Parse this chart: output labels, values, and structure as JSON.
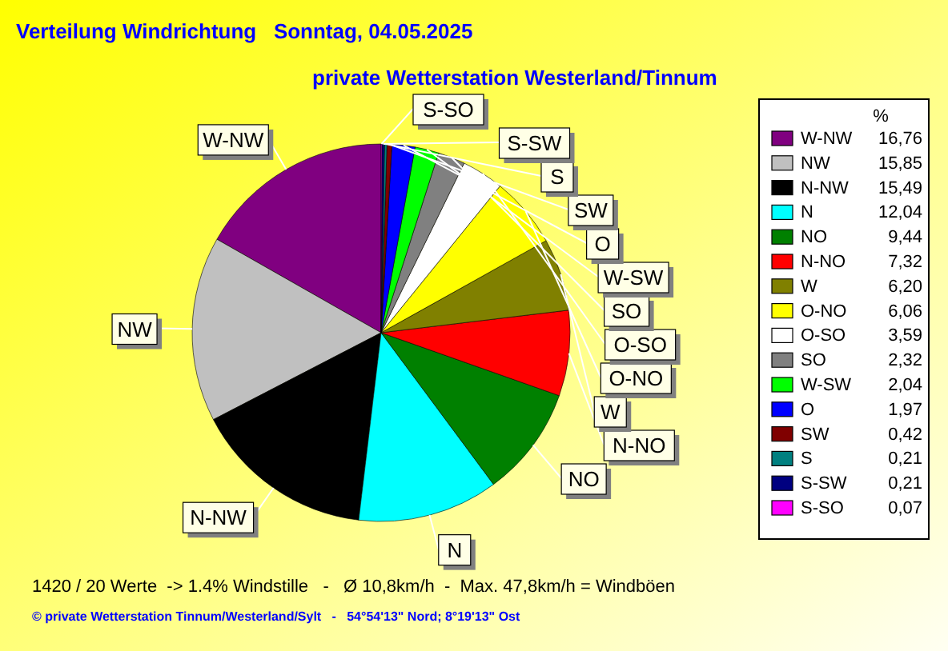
{
  "chart_data": {
    "type": "pie",
    "title": "Verteilung Windrichtung   Sonntag, 04.05.2025",
    "subtitle": "private Wetterstation Westerland/Tinnum",
    "legend_title": "%",
    "legend": "right",
    "categories": [
      "W-NW",
      "NW",
      "N-NW",
      "N",
      "NO",
      "N-NO",
      "W",
      "O-NO",
      "O-SO",
      "SO",
      "W-SW",
      "O",
      "SW",
      "S",
      "S-SW",
      "S-SO"
    ],
    "values": [
      16.76,
      15.85,
      15.49,
      12.04,
      9.44,
      7.32,
      6.2,
      6.06,
      3.59,
      2.32,
      2.04,
      1.97,
      0.42,
      0.21,
      0.21,
      0.07
    ],
    "value_labels": [
      "16,76",
      "15,85",
      "15,49",
      "12,04",
      "9,44",
      "7,32",
      "6,20",
      "6,06",
      "3,59",
      "2,32",
      "2,04",
      "1,97",
      "0,42",
      "0,21",
      "0,21",
      "0,07"
    ],
    "colors": [
      "#800080",
      "#c0c0c0",
      "#000000",
      "#00ffff",
      "#008000",
      "#ff0000",
      "#808000",
      "#ffff00",
      "#ffffff",
      "#808080",
      "#00ff00",
      "#0000ff",
      "#800000",
      "#008080",
      "#000080",
      "#ff00ff"
    ],
    "annotations": [
      "1420 / 20 Werte  -> 1.4% Windstille   -   Ø 10,8km/h  -  Max. 47,8km/h = Windböen",
      "© private Wetterstation Tinnum/Westerland/Sylt   -   54°54'13\" Nord; 8°19'13\" Ost"
    ]
  }
}
